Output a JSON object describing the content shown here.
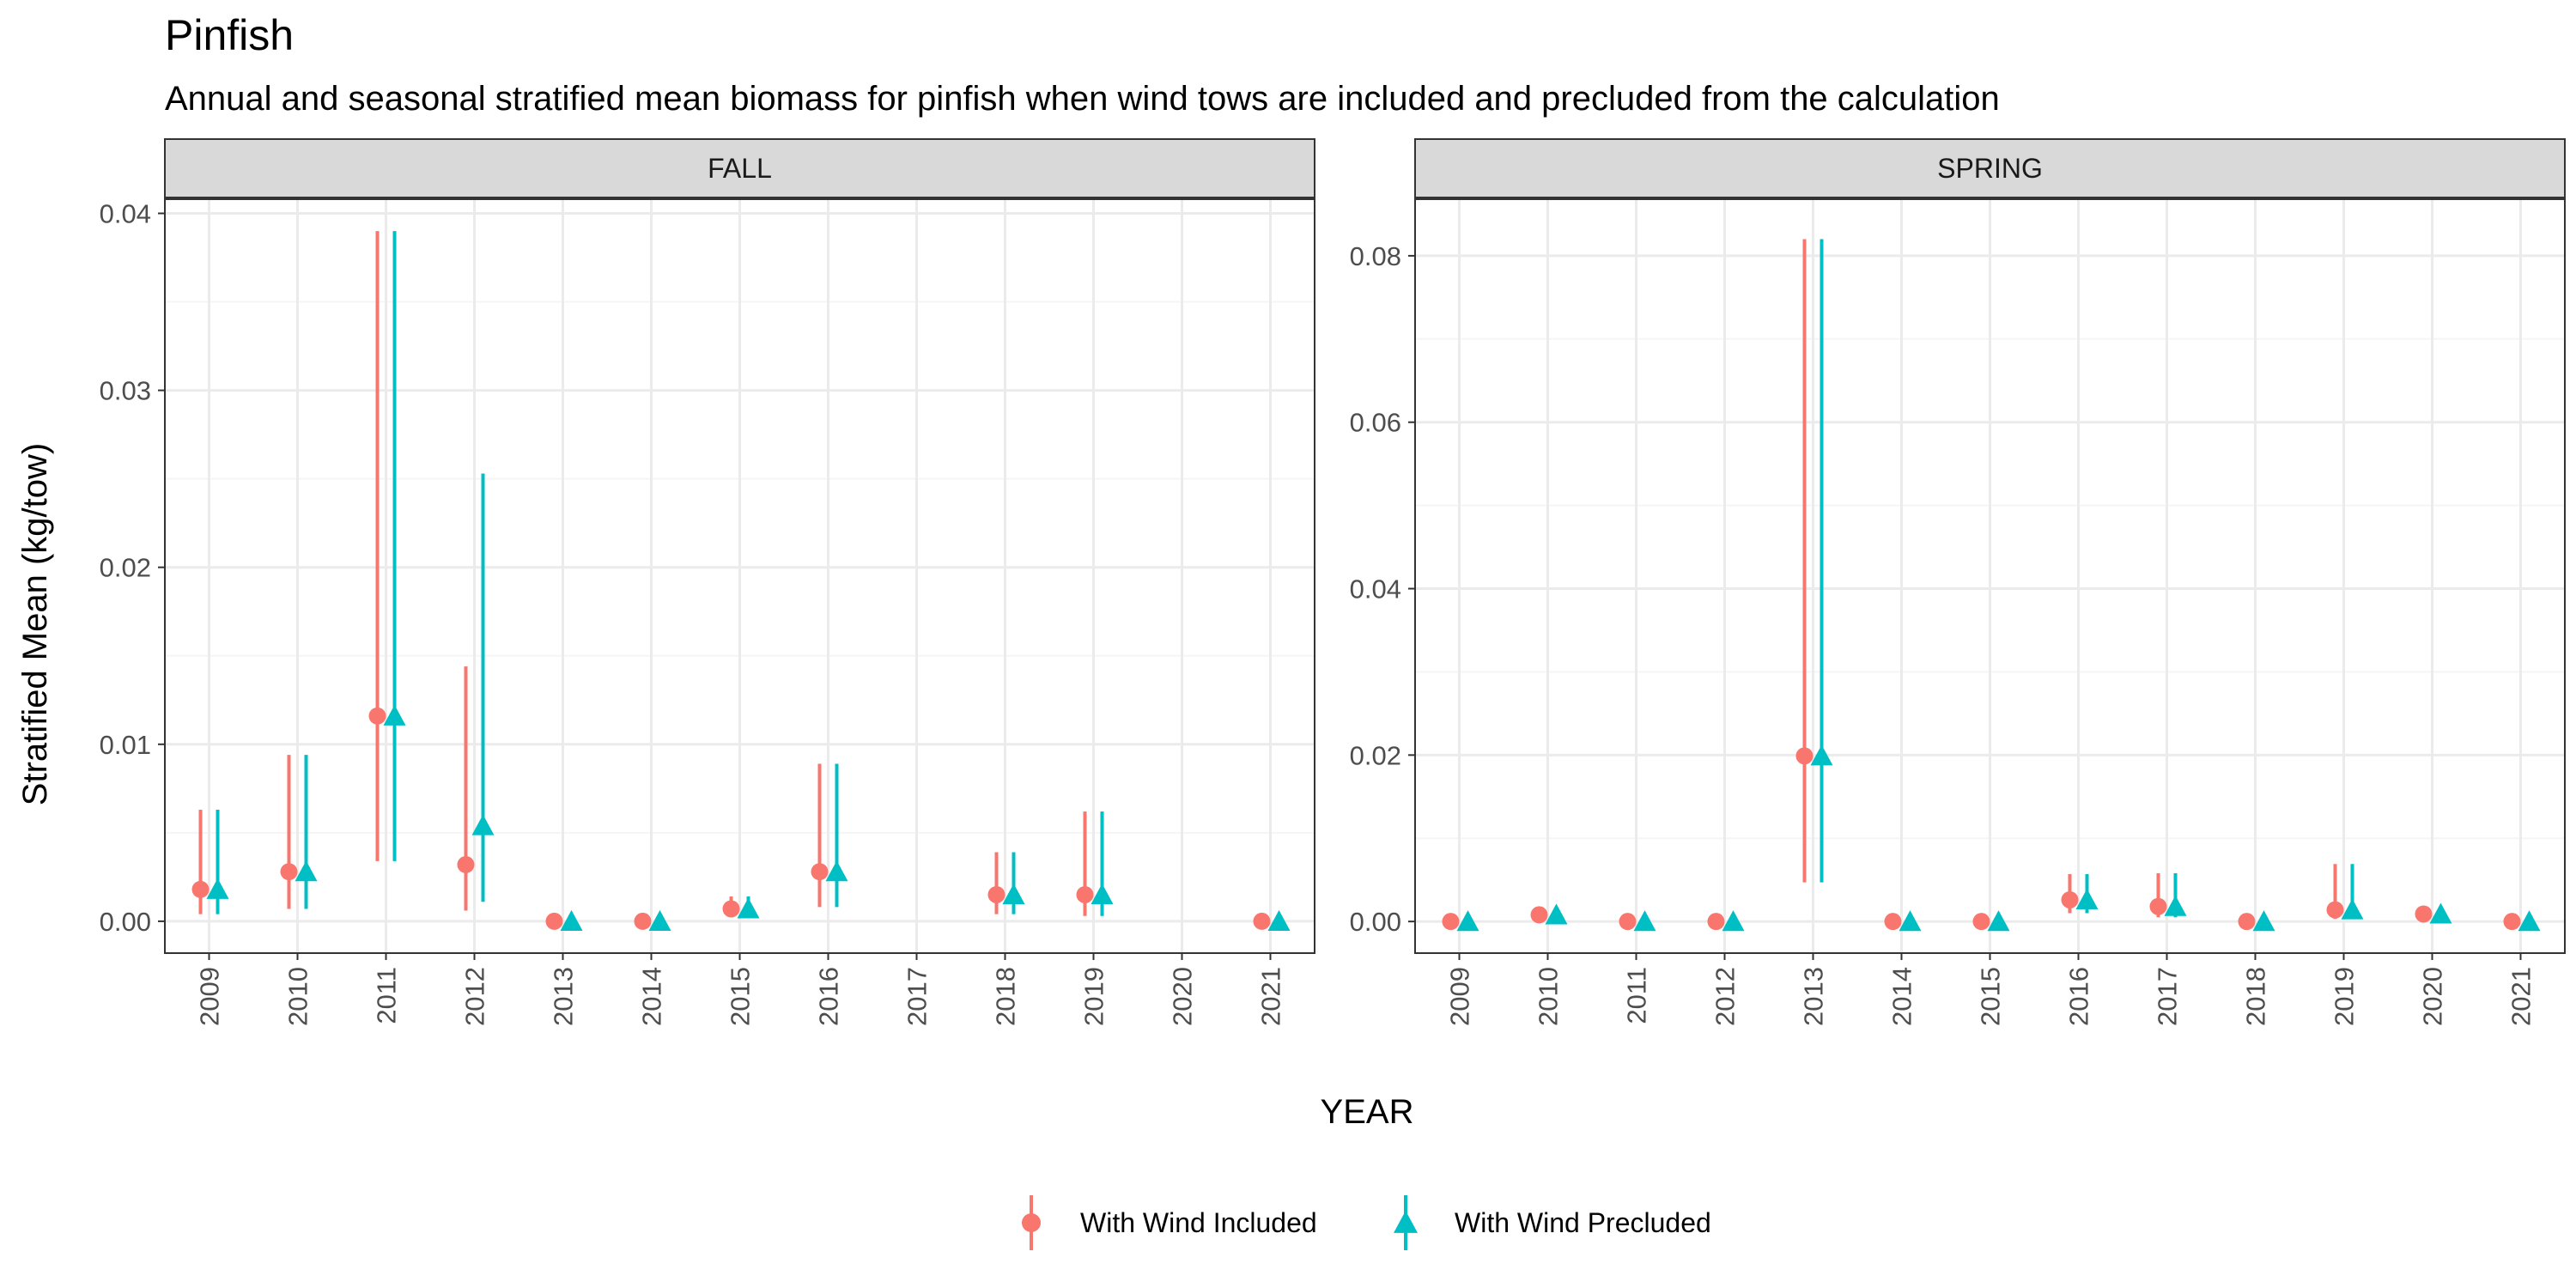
{
  "chart_data": {
    "type": "scatter",
    "title": "Pinfish",
    "subtitle": "Annual and seasonal stratified mean biomass for pinfish when wind tows are included and precluded from the calculation",
    "xlabel": "YEAR",
    "ylabel": "Stratified Mean (kg/tow)",
    "grid": true,
    "legend_position": "bottom",
    "series_names": [
      "With Wind Included",
      "With Wind Precluded"
    ],
    "colors": {
      "With Wind Included": "#F8766D",
      "With Wind Precluded": "#00BFC4",
      "strip_background": "#D9D9D9",
      "grid_major": "#EBEBEB",
      "grid_minor": "#F5F5F5",
      "panel_border": "#333333"
    },
    "markers": {
      "With Wind Included": "circle",
      "With Wind Precluded": "triangle"
    },
    "panels": [
      {
        "name": "FALL",
        "categories": [
          "2009",
          "2010",
          "2011",
          "2012",
          "2013",
          "2014",
          "2015",
          "2016",
          "2017",
          "2018",
          "2019",
          "2020",
          "2021"
        ],
        "ylim": [
          -0.0018,
          0.0408
        ],
        "yticks": [
          0,
          0.01,
          0.02,
          0.03,
          0.04
        ],
        "ytick_labels": [
          "0.00",
          "0.01",
          "0.02",
          "0.03",
          "0.04"
        ],
        "series": [
          {
            "name": "With Wind Included",
            "points": [
              {
                "x": "2009",
                "y": 0.0018,
                "lo": 0.0004,
                "hi": 0.0063
              },
              {
                "x": "2010",
                "y": 0.0028,
                "lo": 0.0007,
                "hi": 0.0094
              },
              {
                "x": "2011",
                "y": 0.0116,
                "lo": 0.0034,
                "hi": 0.039
              },
              {
                "x": "2012",
                "y": 0.0032,
                "lo": 0.0006,
                "hi": 0.0144
              },
              {
                "x": "2013",
                "y": 0.0,
                "lo": 0.0,
                "hi": 0.0
              },
              {
                "x": "2014",
                "y": 0.0,
                "lo": 0.0,
                "hi": 0.0
              },
              {
                "x": "2015",
                "y": 0.0007,
                "lo": 0.0003,
                "hi": 0.0014
              },
              {
                "x": "2016",
                "y": 0.0028,
                "lo": 0.0008,
                "hi": 0.0089
              },
              {
                "x": "2018",
                "y": 0.0015,
                "lo": 0.0004,
                "hi": 0.0039
              },
              {
                "x": "2019",
                "y": 0.0015,
                "lo": 0.0003,
                "hi": 0.0062
              },
              {
                "x": "2021",
                "y": 0.0,
                "lo": 0.0,
                "hi": 0.0
              }
            ]
          },
          {
            "name": "With Wind Precluded",
            "points": [
              {
                "x": "2009",
                "y": 0.0018,
                "lo": 0.0004,
                "hi": 0.0063
              },
              {
                "x": "2010",
                "y": 0.0028,
                "lo": 0.0007,
                "hi": 0.0094
              },
              {
                "x": "2011",
                "y": 0.0116,
                "lo": 0.0034,
                "hi": 0.039
              },
              {
                "x": "2012",
                "y": 0.0054,
                "lo": 0.0011,
                "hi": 0.0253
              },
              {
                "x": "2013",
                "y": 0.0,
                "lo": 0.0,
                "hi": 0.0
              },
              {
                "x": "2014",
                "y": 0.0,
                "lo": 0.0,
                "hi": 0.0
              },
              {
                "x": "2015",
                "y": 0.0007,
                "lo": 0.0003,
                "hi": 0.0014
              },
              {
                "x": "2016",
                "y": 0.0028,
                "lo": 0.0008,
                "hi": 0.0089
              },
              {
                "x": "2018",
                "y": 0.0015,
                "lo": 0.0004,
                "hi": 0.0039
              },
              {
                "x": "2019",
                "y": 0.0015,
                "lo": 0.0003,
                "hi": 0.0062
              },
              {
                "x": "2021",
                "y": 0.0,
                "lo": 0.0,
                "hi": 0.0
              }
            ]
          }
        ]
      },
      {
        "name": "SPRING",
        "categories": [
          "2009",
          "2010",
          "2011",
          "2012",
          "2013",
          "2014",
          "2015",
          "2016",
          "2017",
          "2018",
          "2019",
          "2020",
          "2021"
        ],
        "ylim": [
          -0.0038,
          0.0868
        ],
        "yticks": [
          0,
          0.02,
          0.04,
          0.06,
          0.08
        ],
        "ytick_labels": [
          "0.00",
          "0.02",
          "0.04",
          "0.06",
          "0.08"
        ],
        "series": [
          {
            "name": "With Wind Included",
            "points": [
              {
                "x": "2009",
                "y": 0.0,
                "lo": 0.0,
                "hi": 0.0
              },
              {
                "x": "2010",
                "y": 0.0008,
                "lo": 0.0004,
                "hi": 0.0012
              },
              {
                "x": "2011",
                "y": 0.0,
                "lo": 0.0,
                "hi": 0.0
              },
              {
                "x": "2012",
                "y": 0.0,
                "lo": 0.0,
                "hi": 0.0
              },
              {
                "x": "2013",
                "y": 0.0199,
                "lo": 0.0047,
                "hi": 0.082
              },
              {
                "x": "2014",
                "y": 0.0,
                "lo": 0.0,
                "hi": 0.0
              },
              {
                "x": "2015",
                "y": 0.0,
                "lo": 0.0,
                "hi": 0.0
              },
              {
                "x": "2016",
                "y": 0.0026,
                "lo": 0.001,
                "hi": 0.0057
              },
              {
                "x": "2017",
                "y": 0.0018,
                "lo": 0.0005,
                "hi": 0.0058
              },
              {
                "x": "2018",
                "y": 0.0,
                "lo": 0.0,
                "hi": 0.0
              },
              {
                "x": "2019",
                "y": 0.0014,
                "lo": 0.0003,
                "hi": 0.0069
              },
              {
                "x": "2020",
                "y": 0.0009,
                "lo": 0.0004,
                "hi": 0.0013
              },
              {
                "x": "2021",
                "y": 0.0,
                "lo": 0.0,
                "hi": 0.0
              }
            ]
          },
          {
            "name": "With Wind Precluded",
            "points": [
              {
                "x": "2009",
                "y": 0.0,
                "lo": 0.0,
                "hi": 0.0
              },
              {
                "x": "2010",
                "y": 0.0008,
                "lo": 0.0004,
                "hi": 0.0012
              },
              {
                "x": "2011",
                "y": 0.0,
                "lo": 0.0,
                "hi": 0.0
              },
              {
                "x": "2012",
                "y": 0.0,
                "lo": 0.0,
                "hi": 0.0
              },
              {
                "x": "2013",
                "y": 0.0199,
                "lo": 0.0047,
                "hi": 0.082
              },
              {
                "x": "2014",
                "y": 0.0,
                "lo": 0.0,
                "hi": 0.0
              },
              {
                "x": "2015",
                "y": 0.0,
                "lo": 0.0,
                "hi": 0.0
              },
              {
                "x": "2016",
                "y": 0.0026,
                "lo": 0.001,
                "hi": 0.0057
              },
              {
                "x": "2017",
                "y": 0.0018,
                "lo": 0.0005,
                "hi": 0.0058
              },
              {
                "x": "2018",
                "y": 0.0,
                "lo": 0.0,
                "hi": 0.0
              },
              {
                "x": "2019",
                "y": 0.0014,
                "lo": 0.0003,
                "hi": 0.0069
              },
              {
                "x": "2020",
                "y": 0.0009,
                "lo": 0.0004,
                "hi": 0.0013
              },
              {
                "x": "2021",
                "y": 0.0,
                "lo": 0.0,
                "hi": 0.0
              }
            ]
          }
        ]
      }
    ]
  }
}
